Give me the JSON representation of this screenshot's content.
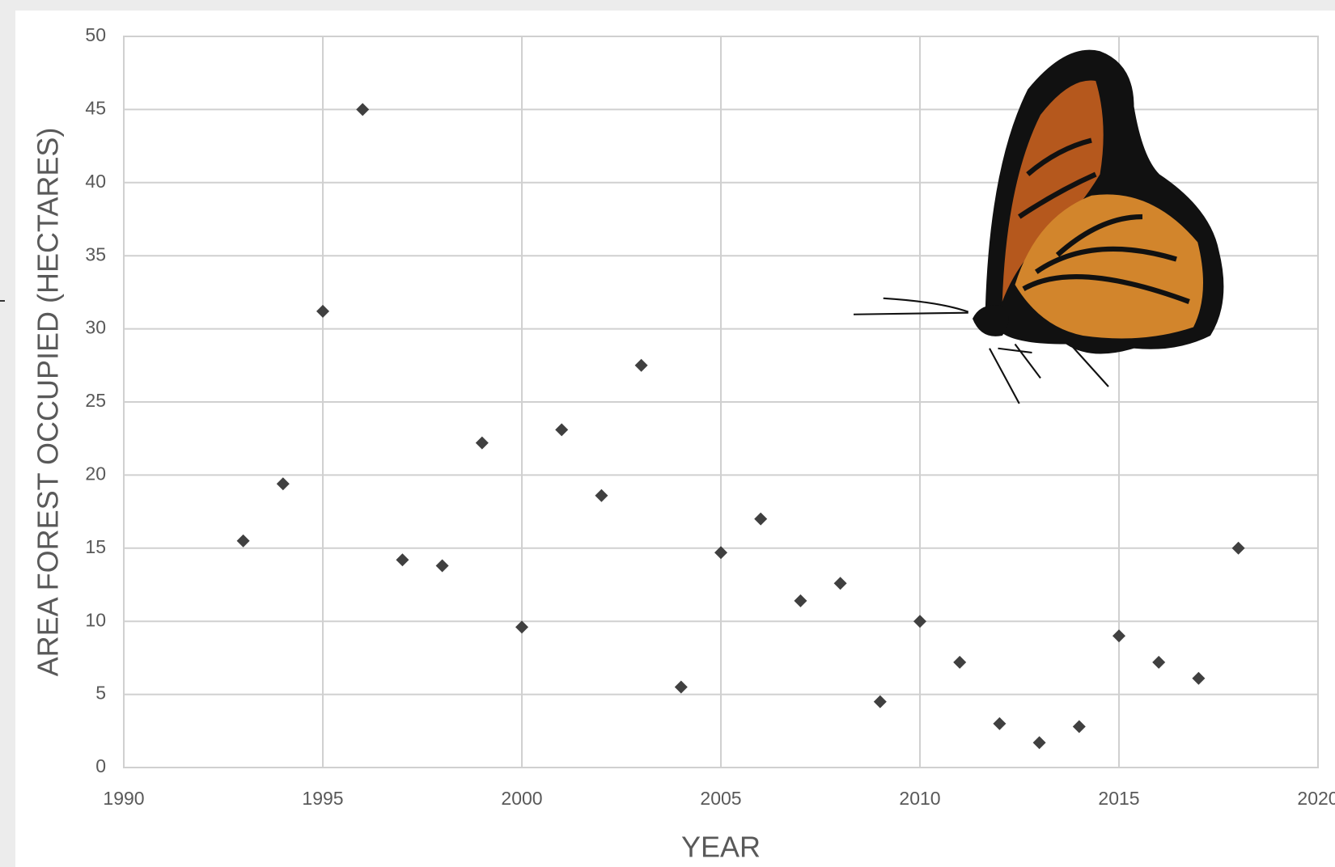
{
  "chart_data": {
    "type": "scatter",
    "x_label": "YEAR",
    "y_label": "AREA FOREST OCCUPIED (HECTARES)",
    "x": [
      1993,
      1994,
      1995,
      1996,
      1997,
      1998,
      1999,
      2000,
      2001,
      2002,
      2003,
      2004,
      2005,
      2006,
      2007,
      2008,
      2009,
      2010,
      2011,
      2012,
      2013,
      2014,
      2015,
      2016,
      2017,
      2018
    ],
    "values": [
      15.5,
      19.4,
      31.2,
      45.0,
      14.2,
      13.8,
      22.2,
      9.6,
      23.1,
      18.6,
      27.5,
      5.5,
      14.7,
      17.0,
      11.4,
      12.6,
      4.5,
      10.0,
      7.2,
      3.0,
      1.7,
      2.8,
      9.0,
      7.2,
      6.1,
      15.0
    ],
    "color": "#404040",
    "xlim": [
      1990,
      2020
    ],
    "xticks": [
      1990,
      1995,
      2000,
      2005,
      2010,
      2015,
      2020
    ],
    "ylim": [
      0,
      50
    ],
    "yticks": [
      0,
      5,
      10,
      15,
      20,
      25,
      30,
      35,
      40,
      45,
      50
    ],
    "grid": true
  }
}
